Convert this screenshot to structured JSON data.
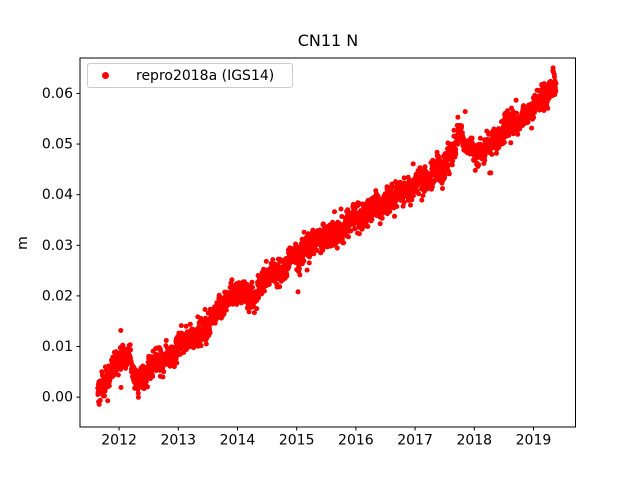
{
  "chart_data": {
    "type": "scatter",
    "title": "CN11 N",
    "xlabel": "",
    "ylabel": "m",
    "grid": false,
    "xlim": [
      2011.34,
      2019.71
    ],
    "ylim": [
      -0.0059,
      0.067
    ],
    "x_ticks": [
      2012,
      2013,
      2014,
      2015,
      2016,
      2017,
      2018,
      2019
    ],
    "x_tick_labels": [
      "2012",
      "2013",
      "2014",
      "2015",
      "2016",
      "2017",
      "2018",
      "2019"
    ],
    "y_ticks": [
      0.0,
      0.01,
      0.02,
      0.03,
      0.04,
      0.05,
      0.06
    ],
    "y_tick_labels": [
      "0.00",
      "0.01",
      "0.02",
      "0.03",
      "0.04",
      "0.05",
      "0.06"
    ],
    "legend": {
      "location": "upper-left",
      "border_color": "#cccccc",
      "entries": [
        {
          "label": "repro2018a (IGS14)",
          "marker": "dot",
          "color": "#ff0000"
        }
      ]
    },
    "series": [
      {
        "name": "repro2018a (IGS14)",
        "color": "#ff0000",
        "marker": "dot",
        "marker_radius_px": 2.5,
        "t_start": 2011.64,
        "t_end": 2019.38,
        "points_per_year": 370,
        "noise_std": 0.0012,
        "wander_amp": 0.0015,
        "outlier_rate": 0.005,
        "sparse_interval": [
          2017.84,
          2017.98
        ],
        "seed": 42,
        "trend_anchors": [
          [
            2011.64,
            0.0008
          ],
          [
            2011.75,
            0.0025
          ],
          [
            2011.9,
            0.0048
          ],
          [
            2012.05,
            0.0068
          ],
          [
            2012.18,
            0.0072
          ],
          [
            2012.3,
            0.0028
          ],
          [
            2012.42,
            0.0028
          ],
          [
            2012.55,
            0.005
          ],
          [
            2012.75,
            0.0072
          ],
          [
            2012.95,
            0.01
          ],
          [
            2013.1,
            0.012
          ],
          [
            2013.3,
            0.0127
          ],
          [
            2013.5,
            0.0138
          ],
          [
            2013.7,
            0.0165
          ],
          [
            2013.9,
            0.019
          ],
          [
            2014.05,
            0.02
          ],
          [
            2014.3,
            0.0207
          ],
          [
            2014.55,
            0.0228
          ],
          [
            2014.8,
            0.0252
          ],
          [
            2015.0,
            0.0275
          ],
          [
            2015.25,
            0.0297
          ],
          [
            2015.5,
            0.0315
          ],
          [
            2015.75,
            0.0332
          ],
          [
            2016.0,
            0.0352
          ],
          [
            2016.25,
            0.0372
          ],
          [
            2016.5,
            0.039
          ],
          [
            2016.75,
            0.0413
          ],
          [
            2017.0,
            0.043
          ],
          [
            2017.25,
            0.0442
          ],
          [
            2017.5,
            0.0455
          ],
          [
            2017.68,
            0.0478
          ],
          [
            2017.73,
            0.052
          ],
          [
            2017.78,
            0.0528
          ],
          [
            2017.83,
            0.049
          ],
          [
            2018.0,
            0.0488
          ],
          [
            2018.2,
            0.0505
          ],
          [
            2018.4,
            0.0518
          ],
          [
            2018.6,
            0.0538
          ],
          [
            2018.8,
            0.0558
          ],
          [
            2019.0,
            0.0578
          ],
          [
            2019.2,
            0.0598
          ],
          [
            2019.38,
            0.0615
          ]
        ]
      }
    ]
  },
  "layout_colors": {
    "background": "#ffffff",
    "axis": "#000000",
    "accent": "#ff0000"
  }
}
